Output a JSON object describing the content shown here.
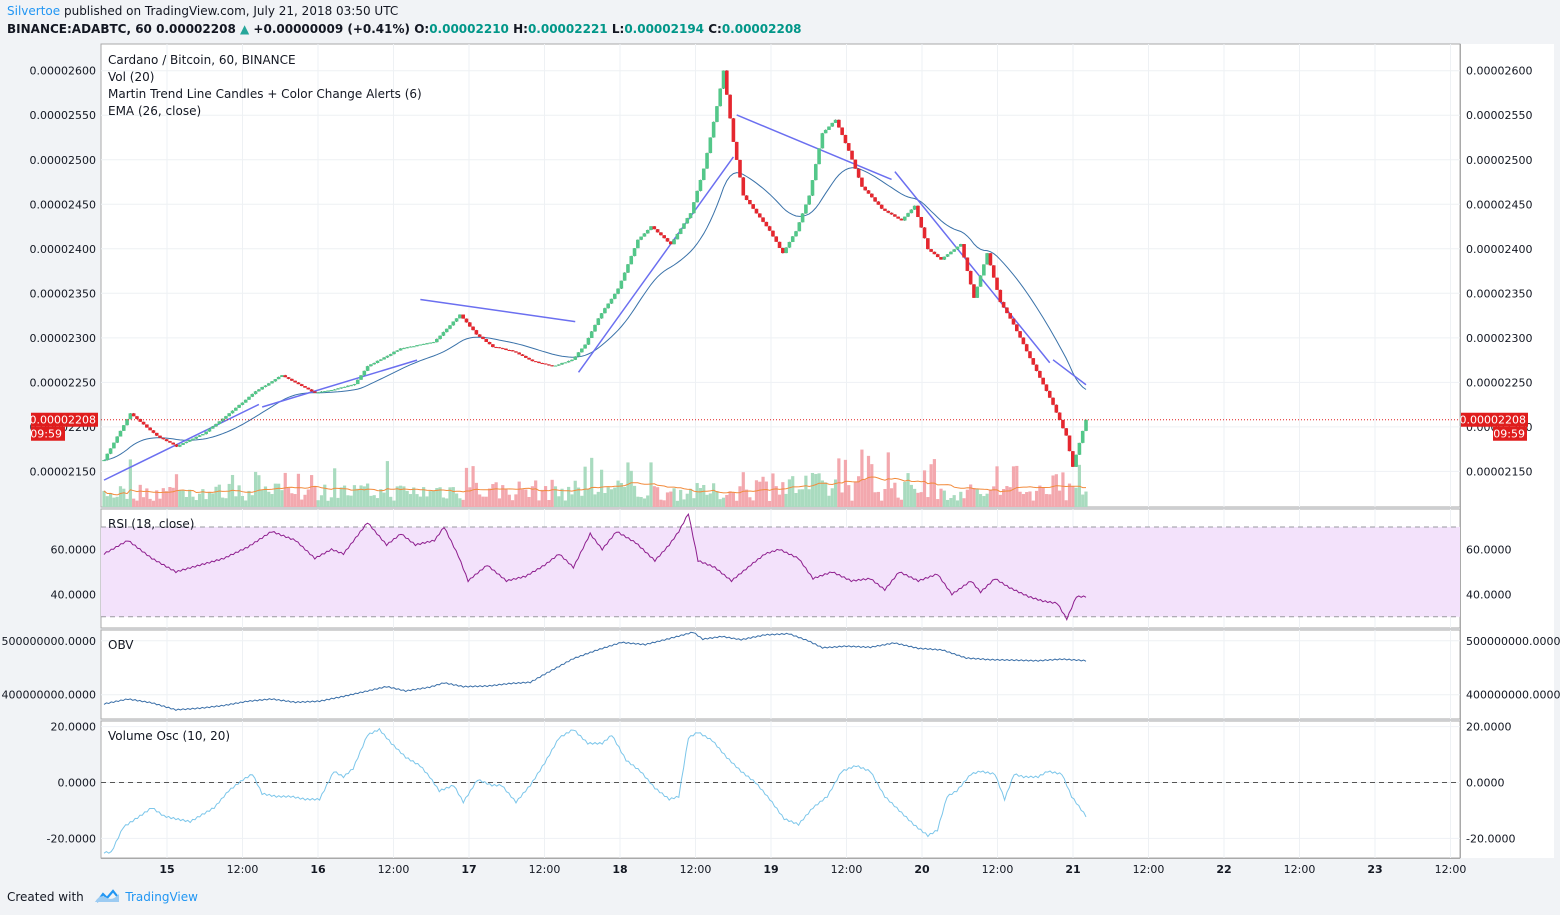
{
  "header": {
    "publisher": "Silvertoe",
    "published_text": "published on TradingView.com, July 21, 2018 03:50 UTC",
    "symbol": "BINANCE:ADABTC, 60",
    "last": "0.00002208",
    "change": "+0.00000009 (+0.41%)",
    "o_label": "O:",
    "o_value": "0.00002210",
    "h_label": "H:",
    "h_value": "0.00002221",
    "l_label": "L:",
    "l_value": "0.00002194",
    "c_label": "C:",
    "c_value": "0.00002208"
  },
  "footer": {
    "created_with": "Created with",
    "brand": "TradingView"
  },
  "colors": {
    "up": "#53c789",
    "down": "#e5272f",
    "vol_up": "#a9dbbf",
    "vol_down": "#f3a8ae",
    "trend": "#6b6ff0",
    "ema": "#3a72a9",
    "vol_ma": "#f28b3c",
    "rsi": "#8e1e8e",
    "rsi_band": "#f3e2fb",
    "obv": "#3a6fa8",
    "vosc": "#7cc6ea",
    "price_tag": "#e01d1d"
  },
  "chart_data": [
    {
      "type": "candlestick",
      "title": "Cardano / Bitcoin, 60, BINANCE",
      "legend": [
        "Vol (20)",
        "Martin Trend Line Candles + Color Change Alerts (6)",
        "EMA (26, close)"
      ],
      "y_ticks": [
        "0.00002150",
        "0.00002200",
        "0.00002250",
        "0.00002300",
        "0.00002350",
        "0.00002400",
        "0.00002450",
        "0.00002500",
        "0.00002550",
        "0.00002600"
      ],
      "ylim": [
        2.11e-05,
        2.63e-05
      ],
      "x_ticks": [
        "15",
        "12:00",
        "16",
        "12:00",
        "17",
        "12:00",
        "18",
        "12:00",
        "19",
        "12:00",
        "20",
        "12:00",
        "21",
        "12:00",
        "22",
        "12:00",
        "23",
        "12:00"
      ],
      "last_price_label": "0.00002208",
      "countdown_label": "09:59",
      "close_anchors": [
        [
          0,
          2163
        ],
        [
          8,
          2215
        ],
        [
          16,
          2190
        ],
        [
          22,
          2178
        ],
        [
          30,
          2192
        ],
        [
          38,
          2215
        ],
        [
          46,
          2240
        ],
        [
          54,
          2258
        ],
        [
          60,
          2246
        ],
        [
          64,
          2238
        ],
        [
          70,
          2242
        ],
        [
          76,
          2248
        ],
        [
          80,
          2268
        ],
        [
          90,
          2288
        ],
        [
          100,
          2295
        ],
        [
          108,
          2326
        ],
        [
          113,
          2304
        ],
        [
          118,
          2290
        ],
        [
          124,
          2285
        ],
        [
          130,
          2274
        ],
        [
          136,
          2268
        ],
        [
          142,
          2275
        ],
        [
          146,
          2292
        ],
        [
          150,
          2322
        ],
        [
          156,
          2355
        ],
        [
          162,
          2410
        ],
        [
          166,
          2425
        ],
        [
          172,
          2405
        ],
        [
          178,
          2440
        ],
        [
          182,
          2490
        ],
        [
          186,
          2560
        ],
        [
          188,
          2600
        ],
        [
          191,
          2520
        ],
        [
          194,
          2460
        ],
        [
          198,
          2440
        ],
        [
          202,
          2420
        ],
        [
          206,
          2395
        ],
        [
          210,
          2420
        ],
        [
          214,
          2460
        ],
        [
          218,
          2530
        ],
        [
          222,
          2545
        ],
        [
          226,
          2510
        ],
        [
          230,
          2470
        ],
        [
          236,
          2445
        ],
        [
          242,
          2432
        ],
        [
          246,
          2448
        ],
        [
          250,
          2400
        ],
        [
          254,
          2388
        ],
        [
          260,
          2405
        ],
        [
          264,
          2345
        ],
        [
          268,
          2395
        ],
        [
          272,
          2340
        ],
        [
          276,
          2315
        ],
        [
          280,
          2285
        ],
        [
          284,
          2255
        ],
        [
          288,
          2225
        ],
        [
          292,
          2190
        ],
        [
          294,
          2155
        ],
        [
          298,
          2209
        ]
      ],
      "last_index": 298
    },
    {
      "type": "line",
      "title": "RSI (18, close)",
      "y_ticks": [
        "40.0000",
        "60.0000"
      ],
      "ylim": [
        25,
        78
      ],
      "band": [
        30,
        70
      ],
      "anchors": [
        [
          0,
          58
        ],
        [
          10,
          64
        ],
        [
          15,
          60
        ],
        [
          20,
          56
        ],
        [
          30,
          50
        ],
        [
          40,
          53
        ],
        [
          50,
          56
        ],
        [
          60,
          61
        ],
        [
          70,
          68
        ],
        [
          80,
          64
        ],
        [
          88,
          56
        ],
        [
          95,
          60
        ],
        [
          100,
          58
        ],
        [
          110,
          72
        ],
        [
          118,
          62
        ],
        [
          124,
          67
        ],
        [
          130,
          62
        ],
        [
          138,
          64
        ],
        [
          142,
          70
        ],
        [
          148,
          57
        ],
        [
          152,
          46
        ],
        [
          160,
          53
        ],
        [
          168,
          46
        ],
        [
          176,
          48
        ],
        [
          184,
          53
        ],
        [
          190,
          58
        ],
        [
          196,
          52
        ],
        [
          203,
          67
        ],
        [
          208,
          60
        ],
        [
          214,
          68
        ],
        [
          222,
          63
        ],
        [
          230,
          55
        ],
        [
          236,
          62
        ],
        [
          240,
          68
        ],
        [
          244,
          76
        ],
        [
          248,
          55
        ],
        [
          255,
          52
        ],
        [
          262,
          46
        ],
        [
          270,
          53
        ],
        [
          276,
          58
        ],
        [
          282,
          60
        ],
        [
          290,
          56
        ],
        [
          296,
          47
        ],
        [
          304,
          50
        ],
        [
          312,
          46
        ],
        [
          320,
          47
        ],
        [
          326,
          42
        ],
        [
          332,
          50
        ],
        [
          340,
          46
        ],
        [
          348,
          49
        ],
        [
          354,
          40
        ],
        [
          362,
          46
        ],
        [
          366,
          41
        ],
        [
          372,
          47
        ],
        [
          378,
          43
        ],
        [
          386,
          39
        ],
        [
          392,
          37
        ],
        [
          398,
          36
        ],
        [
          402,
          29
        ],
        [
          406,
          39
        ],
        [
          410,
          39
        ]
      ]
    },
    {
      "type": "line",
      "title": "OBV",
      "y_ticks": [
        "400000000.0000",
        "500000000.0000"
      ],
      "ylim": [
        355000000,
        520000000
      ],
      "anchors": [
        [
          0,
          383000000
        ],
        [
          10,
          392000000
        ],
        [
          20,
          385000000
        ],
        [
          30,
          372000000
        ],
        [
          40,
          375000000
        ],
        [
          50,
          380000000
        ],
        [
          60,
          388000000
        ],
        [
          70,
          392000000
        ],
        [
          80,
          386000000
        ],
        [
          90,
          388000000
        ],
        [
          100,
          397000000
        ],
        [
          110,
          407000000
        ],
        [
          118,
          415000000
        ],
        [
          126,
          407000000
        ],
        [
          136,
          414000000
        ],
        [
          142,
          422000000
        ],
        [
          150,
          415000000
        ],
        [
          160,
          416000000
        ],
        [
          170,
          421000000
        ],
        [
          178,
          423000000
        ],
        [
          186,
          443000000
        ],
        [
          196,
          467000000
        ],
        [
          206,
          483000000
        ],
        [
          216,
          497000000
        ],
        [
          226,
          493000000
        ],
        [
          236,
          504000000
        ],
        [
          246,
          516000000
        ],
        [
          250,
          503000000
        ],
        [
          258,
          508000000
        ],
        [
          266,
          502000000
        ],
        [
          276,
          511000000
        ],
        [
          286,
          513000000
        ],
        [
          294,
          500000000
        ],
        [
          300,
          487000000
        ],
        [
          310,
          490000000
        ],
        [
          320,
          488000000
        ],
        [
          330,
          496000000
        ],
        [
          340,
          486000000
        ],
        [
          350,
          483000000
        ],
        [
          360,
          468000000
        ],
        [
          370,
          465000000
        ],
        [
          380,
          464000000
        ],
        [
          390,
          463000000
        ],
        [
          400,
          466000000
        ],
        [
          410,
          463000000
        ]
      ]
    },
    {
      "type": "line",
      "title": "Volume Osc (10, 20)",
      "y_ticks": [
        "-20.0000",
        "0.0000",
        "20.0000"
      ],
      "ylim": [
        -27,
        22
      ],
      "zero_line": 0,
      "anchors": [
        [
          0,
          -25
        ],
        [
          3,
          -25
        ],
        [
          8,
          -16
        ],
        [
          15,
          -12
        ],
        [
          20,
          -9
        ],
        [
          25,
          -12
        ],
        [
          30,
          -13
        ],
        [
          36,
          -14
        ],
        [
          42,
          -11
        ],
        [
          46,
          -9
        ],
        [
          52,
          -3
        ],
        [
          58,
          1
        ],
        [
          62,
          3
        ],
        [
          66,
          -4
        ],
        [
          72,
          -5
        ],
        [
          78,
          -5
        ],
        [
          84,
          -6
        ],
        [
          90,
          -6
        ],
        [
          96,
          4
        ],
        [
          100,
          2
        ],
        [
          104,
          5
        ],
        [
          110,
          17
        ],
        [
          115,
          19
        ],
        [
          120,
          14
        ],
        [
          126,
          9
        ],
        [
          132,
          6
        ],
        [
          136,
          2
        ],
        [
          140,
          -3
        ],
        [
          146,
          -1
        ],
        [
          150,
          -7
        ],
        [
          156,
          1
        ],
        [
          162,
          -1
        ],
        [
          166,
          -1
        ],
        [
          172,
          -7
        ],
        [
          178,
          -1
        ],
        [
          184,
          7
        ],
        [
          190,
          16
        ],
        [
          196,
          19
        ],
        [
          202,
          14
        ],
        [
          208,
          14
        ],
        [
          212,
          17
        ],
        [
          218,
          8
        ],
        [
          224,
          4
        ],
        [
          230,
          -2
        ],
        [
          236,
          -6
        ],
        [
          240,
          -5
        ],
        [
          244,
          16
        ],
        [
          248,
          18
        ],
        [
          254,
          15
        ],
        [
          260,
          9
        ],
        [
          266,
          4
        ],
        [
          272,
          0
        ],
        [
          278,
          -6
        ],
        [
          284,
          -13
        ],
        [
          290,
          -15
        ],
        [
          296,
          -9
        ],
        [
          302,
          -5
        ],
        [
          308,
          4
        ],
        [
          314,
          6
        ],
        [
          320,
          4
        ],
        [
          326,
          -5
        ],
        [
          332,
          -10
        ],
        [
          338,
          -15
        ],
        [
          344,
          -19
        ],
        [
          348,
          -17
        ],
        [
          352,
          -5
        ],
        [
          356,
          -3
        ],
        [
          362,
          3
        ],
        [
          366,
          4
        ],
        [
          372,
          3
        ],
        [
          376,
          -6
        ],
        [
          380,
          3
        ],
        [
          384,
          2
        ],
        [
          390,
          2
        ],
        [
          394,
          4
        ],
        [
          400,
          3
        ],
        [
          404,
          -5
        ],
        [
          410,
          -12
        ]
      ]
    }
  ]
}
